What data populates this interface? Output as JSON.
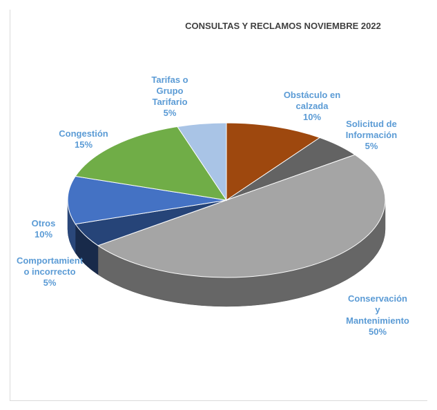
{
  "chart_data": {
    "type": "pie3d",
    "title": "CONSULTAS Y RECLAMOS NOVIEMBRE 2022",
    "categories": [
      "Obstáculo en calzada",
      "Solicitud de Información",
      "Conservación y Mantenimiento",
      "Comportamiento incorrecto",
      "Otros",
      "Congestión",
      "Tarifas o Grupo Tarifario"
    ],
    "values": [
      10,
      5,
      50,
      5,
      10,
      15,
      5
    ],
    "value_labels": [
      "10%",
      "5%",
      "50%",
      "5%",
      "10%",
      "15%",
      "5%"
    ],
    "colors": [
      "#9e480e",
      "#636363",
      "#a5a5a5",
      "#264478",
      "#4472c4",
      "#70ad47",
      "#a9c4e6"
    ]
  }
}
